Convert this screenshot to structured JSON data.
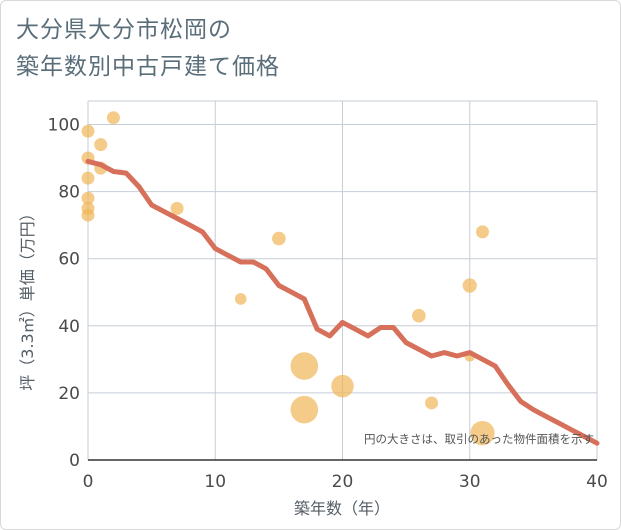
{
  "title_lines": [
    "大分県大分市松岡の",
    "築年数別中古戸建て価格"
  ],
  "chart_data": {
    "type": "scatter",
    "xlabel": "築年数（年）",
    "ylabel": "坪（3.3㎡）単価（万円）",
    "xlim": [
      0,
      40
    ],
    "ylim": [
      0,
      107
    ],
    "xticks": [
      0,
      10,
      20,
      30,
      40
    ],
    "yticks": [
      0,
      20,
      40,
      60,
      80,
      100
    ],
    "grid": true,
    "annotation": "円の大きさは、取引のあった物件面積を示す",
    "scatter_points": [
      {
        "x": 0,
        "y": 98,
        "size": 1
      },
      {
        "x": 0,
        "y": 90,
        "size": 1
      },
      {
        "x": 0,
        "y": 84,
        "size": 1
      },
      {
        "x": 0,
        "y": 78,
        "size": 1
      },
      {
        "x": 0,
        "y": 75,
        "size": 1
      },
      {
        "x": 0,
        "y": 73,
        "size": 1
      },
      {
        "x": 1,
        "y": 94,
        "size": 1
      },
      {
        "x": 1,
        "y": 87,
        "size": 1
      },
      {
        "x": 2,
        "y": 102,
        "size": 1
      },
      {
        "x": 7,
        "y": 75,
        "size": 1
      },
      {
        "x": 12,
        "y": 48,
        "size": 0.8
      },
      {
        "x": 15,
        "y": 66,
        "size": 1.1
      },
      {
        "x": 17,
        "y": 28,
        "size": 4.5
      },
      {
        "x": 17,
        "y": 15,
        "size": 4.5
      },
      {
        "x": 20,
        "y": 22,
        "size": 3
      },
      {
        "x": 26,
        "y": 43,
        "size": 1.1
      },
      {
        "x": 27,
        "y": 17,
        "size": 1
      },
      {
        "x": 30,
        "y": 52,
        "size": 1.2
      },
      {
        "x": 30,
        "y": 31,
        "size": 0.7
      },
      {
        "x": 31,
        "y": 68,
        "size": 1
      },
      {
        "x": 31,
        "y": 8,
        "size": 3.5
      }
    ],
    "trend_line": {
      "x": [
        0,
        1,
        2,
        3,
        4,
        5,
        6,
        7,
        8,
        9,
        10,
        11,
        12,
        13,
        14,
        15,
        16,
        17,
        18,
        19,
        20,
        21,
        22,
        23,
        24,
        25,
        26,
        27,
        28,
        29,
        30,
        31,
        32,
        33,
        34,
        35,
        36,
        37,
        38,
        39,
        40
      ],
      "y": [
        89,
        88,
        86,
        85.5,
        81.5,
        76,
        74,
        72,
        70,
        68,
        63,
        61,
        59,
        59,
        57,
        52,
        50,
        48,
        39,
        37,
        41,
        39,
        37,
        39.5,
        39.5,
        35,
        33,
        31,
        32,
        31,
        32,
        30,
        28,
        22.5,
        17.5,
        15,
        13,
        11,
        9,
        7,
        5
      ]
    },
    "colors": {
      "scatter": "#f0b75a",
      "trend": "#d7705a",
      "grid": "#c5cdd6",
      "axis": "#333333"
    }
  }
}
